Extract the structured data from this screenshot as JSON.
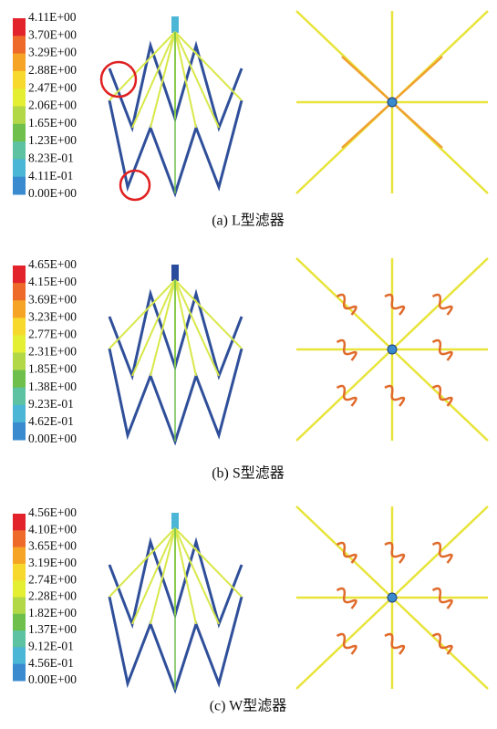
{
  "panels": [
    {
      "caption": "(a) L型滤器",
      "legend": [
        "4.11E+00",
        "3.70E+00",
        "3.29E+00",
        "2.88E+00",
        "2.47E+00",
        "2.06E+00",
        "1.65E+00",
        "1.23E+00",
        "8.23E-01",
        "4.11E-01",
        "0.00E+00"
      ]
    },
    {
      "caption": "(b) S型滤器",
      "legend": [
        "4.65E+00",
        "4.15E+00",
        "3.69E+00",
        "3.23E+00",
        "2.77E+00",
        "2.31E+00",
        "1.85E+00",
        "1.38E+00",
        "9.23E-01",
        "4.62E-01",
        "0.00E+00"
      ]
    },
    {
      "caption": "(c) W型滤器",
      "legend": [
        "4.56E+00",
        "4.10E+00",
        "3.65E+00",
        "3.19E+00",
        "2.74E+00",
        "2.28E+00",
        "1.82E+00",
        "1.37E+00",
        "9.12E-01",
        "4.56E-01",
        "0.00E+00"
      ]
    }
  ]
}
